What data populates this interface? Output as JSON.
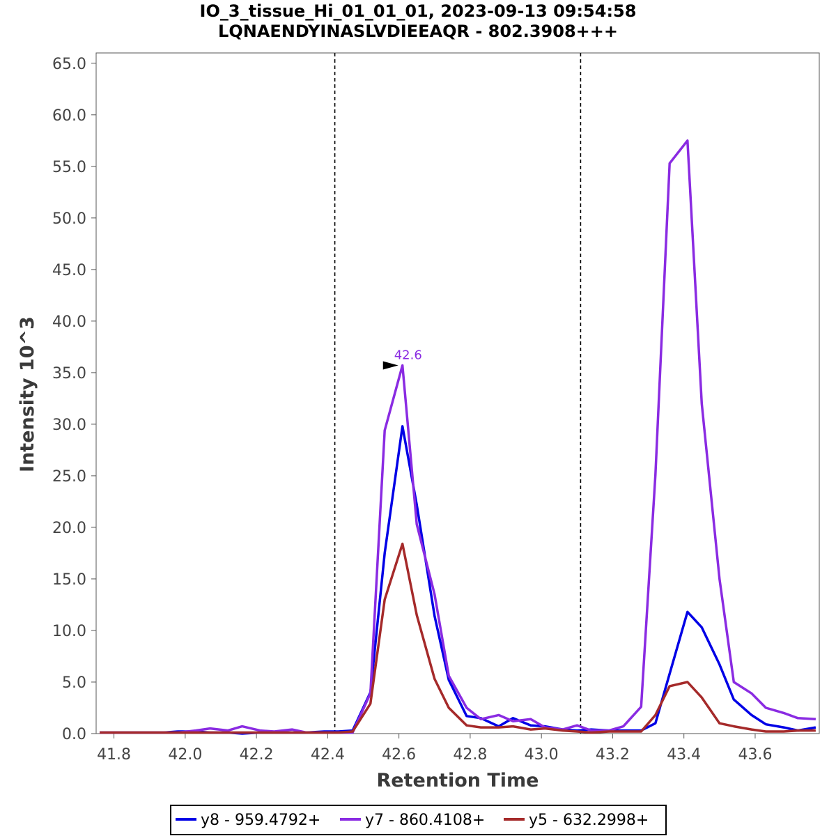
{
  "chart_data": {
    "type": "line",
    "title": "IO_3_tissue_Hi_01_01_01, 2023-09-13 09:54:58",
    "subtitle": "LQNAENDYINASLVDIEEAQR - 802.3908+++",
    "xlabel": "Retention Time",
    "ylabel": "Intensity 10^3",
    "xlim": [
      41.75,
      43.78
    ],
    "ylim": [
      0,
      66
    ],
    "x_ticks": [
      "41.8",
      "42.0",
      "42.2",
      "42.4",
      "42.6",
      "42.8",
      "43.0",
      "43.2",
      "43.4",
      "43.6"
    ],
    "y_ticks": [
      "0.0",
      "5.0",
      "10.0",
      "15.0",
      "20.0",
      "25.0",
      "30.0",
      "35.0",
      "40.0",
      "45.0",
      "50.0",
      "55.0",
      "60.0",
      "65.0"
    ],
    "boundaries": [
      42.42,
      43.11
    ],
    "annotation": {
      "label": "42.6",
      "x": 42.61,
      "y": 35.7,
      "color": "#8a2be2"
    },
    "legend_position": "bottom-center",
    "x": [
      41.76,
      41.8,
      41.85,
      41.89,
      41.94,
      41.98,
      42.03,
      42.07,
      42.12,
      42.16,
      42.21,
      42.25,
      42.3,
      42.34,
      42.39,
      42.43,
      42.47,
      42.52,
      42.56,
      42.61,
      42.65,
      42.7,
      42.74,
      42.79,
      42.83,
      42.88,
      42.92,
      42.97,
      43.01,
      43.06,
      43.1,
      43.14,
      43.19,
      43.23,
      43.28,
      43.32,
      43.36,
      43.41,
      43.45,
      43.5,
      43.54,
      43.59,
      43.63,
      43.68,
      43.72,
      43.77
    ],
    "series": [
      {
        "name": "y8 - 959.4792+",
        "color": "#0000e6",
        "values": [
          0.1,
          0.1,
          0.1,
          0.1,
          0.1,
          0.2,
          0.2,
          0.1,
          0.1,
          0.0,
          0.1,
          0.1,
          0.1,
          0.1,
          0.2,
          0.2,
          0.3,
          4.0,
          17.5,
          29.8,
          22.2,
          11.4,
          5.2,
          1.7,
          1.5,
          0.7,
          1.5,
          0.8,
          0.7,
          0.4,
          0.3,
          0.4,
          0.3,
          0.3,
          0.3,
          1.0,
          5.8,
          11.8,
          10.3,
          6.7,
          3.3,
          1.8,
          0.9,
          0.6,
          0.3,
          0.6
        ]
      },
      {
        "name": "y7 - 860.4108+",
        "color": "#8a2be2",
        "values": [
          0.1,
          0.1,
          0.1,
          0.1,
          0.1,
          0.1,
          0.3,
          0.5,
          0.3,
          0.7,
          0.3,
          0.2,
          0.4,
          0.1,
          0.1,
          0.1,
          0.1,
          3.9,
          29.4,
          35.7,
          20.3,
          13.5,
          5.6,
          2.5,
          1.4,
          1.8,
          1.2,
          1.4,
          0.6,
          0.4,
          0.8,
          0.3,
          0.3,
          0.7,
          2.6,
          25.1,
          55.3,
          57.5,
          32.0,
          15.0,
          5.0,
          3.9,
          2.5,
          2.0,
          1.5,
          1.4
        ]
      },
      {
        "name": "y5 - 632.2998+",
        "color": "#a52a2a",
        "values": [
          0.1,
          0.1,
          0.1,
          0.1,
          0.1,
          0.1,
          0.1,
          0.1,
          0.1,
          0.1,
          0.1,
          0.1,
          0.1,
          0.1,
          0.1,
          0.1,
          0.2,
          2.9,
          13.0,
          18.4,
          11.5,
          5.3,
          2.5,
          0.8,
          0.6,
          0.6,
          0.7,
          0.4,
          0.5,
          0.3,
          0.2,
          0.1,
          0.2,
          0.2,
          0.2,
          1.8,
          4.6,
          5.0,
          3.5,
          1.0,
          0.7,
          0.4,
          0.2,
          0.2,
          0.3,
          0.3
        ]
      }
    ]
  }
}
